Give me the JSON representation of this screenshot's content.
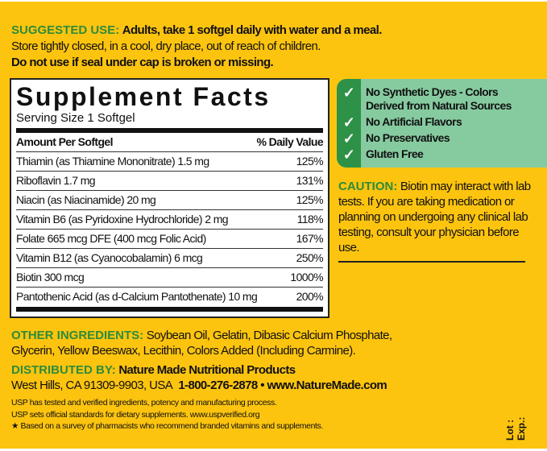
{
  "suggested_use": {
    "label": "SUGGESTED USE:",
    "line1": "Adults, take 1 softgel daily with water and a meal.",
    "line2": "Store tightly closed, in a cool, dry place, out of reach of children.",
    "line3": "Do not use if seal under cap is broken or missing."
  },
  "facts": {
    "title": "Supplement Facts",
    "serving": "Serving Size 1 Softgel",
    "col_amount": "Amount Per Softgel",
    "col_dv": "% Daily Value",
    "rows": [
      {
        "name": "Thiamin (as Thiamine Mononitrate)  1.5 mg",
        "dv": "125%"
      },
      {
        "name": "Riboflavin  1.7 mg",
        "dv": "131%"
      },
      {
        "name": "Niacin (as Niacinamide)  20 mg",
        "dv": "125%"
      },
      {
        "name": "Vitamin B6 (as Pyridoxine Hydrochloride)  2 mg",
        "dv": "118%"
      },
      {
        "name": "Folate  665 mcg DFE (400 mcg Folic Acid)",
        "dv": "167%"
      },
      {
        "name": "Vitamin B12 (as Cyanocobalamin)  6 mcg",
        "dv": "250%"
      },
      {
        "name": "Biotin  300 mcg",
        "dv": "1000%"
      },
      {
        "name": "Pantothenic Acid (as d-Calcium Pantothenate)  10 mg",
        "dv": "200%"
      }
    ]
  },
  "claims": {
    "icon": "check-icon",
    "items": [
      "No Synthetic Dyes - Colors",
      "Derived from Natural Sources",
      "No Artificial Flavors",
      "No Preservatives",
      "Gluten Free"
    ]
  },
  "caution": {
    "label": "CAUTION:",
    "text": "Biotin may interact with lab tests. If you are taking medication or planning on undergoing any clinical lab testing, consult your physician before use."
  },
  "other_ingredients": {
    "label": "OTHER INGREDIENTS:",
    "line1": "Soybean Oil, Gelatin, Dibasic Calcium Phosphate,",
    "line2": "Glycerin, Yellow Beeswax, Lecithin, Colors Added (Including Carmine)."
  },
  "distributed": {
    "label": "DISTRIBUTED BY:",
    "company": "Nature Made Nutritional Products",
    "address": "West Hills, CA 91309-9903, USA",
    "contact": "1-800-276-2878 • www.NatureMade.com"
  },
  "usp": {
    "line1": "USP has tested and verified ingredients, potency and manufacturing process.",
    "line2": "USP sets official standards for dietary supplements. www.uspverified.org",
    "line3": "★ Based on a survey of pharmacists who recommend branded vitamins and supplements."
  },
  "lot": {
    "lot": "Lot :",
    "exp": "Exp.:"
  },
  "colors": {
    "background": "#FDC40F",
    "green_text": "#2e8b3a",
    "claims_box": "#86CBA0",
    "claims_strip": "#2E9148"
  }
}
